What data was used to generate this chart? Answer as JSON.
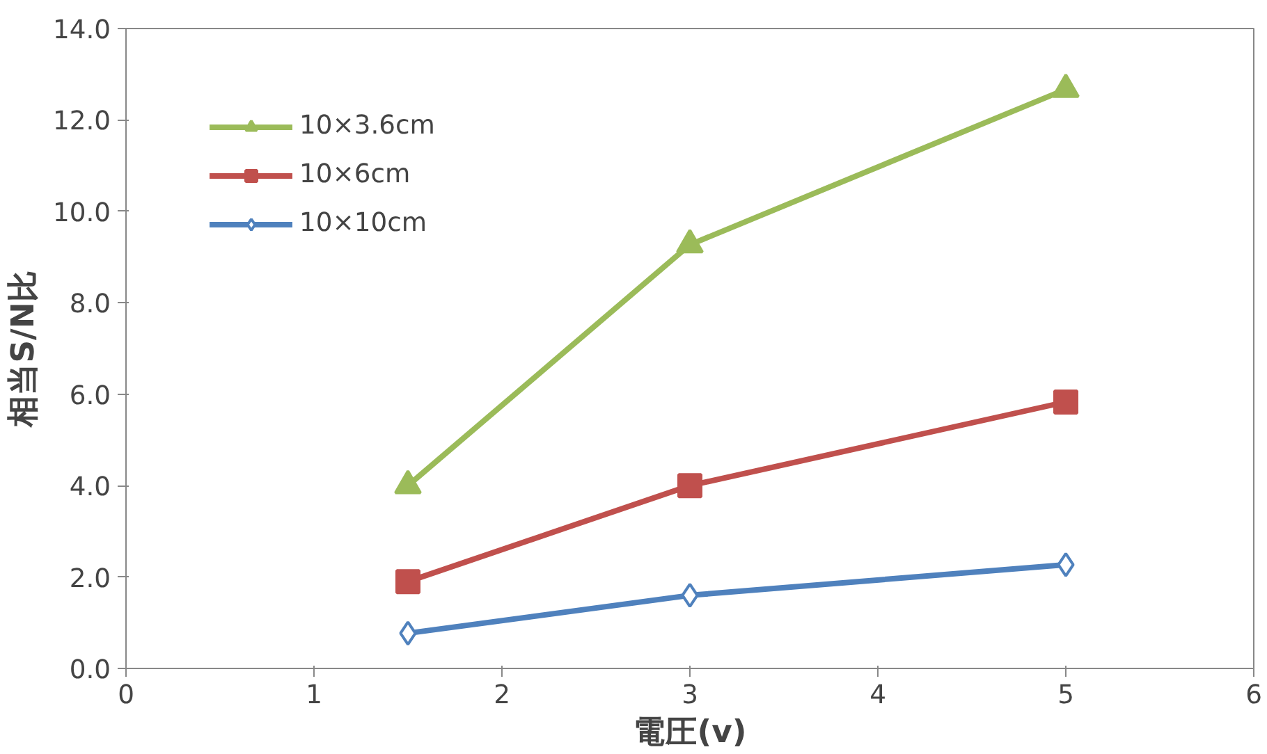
{
  "chart_data": {
    "type": "line",
    "xlabel": "電圧(v)",
    "ylabel": "相当S/N比",
    "x": [
      1.5,
      3,
      5
    ],
    "series": [
      {
        "name": "10×3.6cm",
        "color": "#9bbb59",
        "marker": "triangle",
        "values": [
          4.0,
          9.27,
          12.67
        ]
      },
      {
        "name": "10×6cm",
        "color": "#c0504d",
        "marker": "square",
        "values": [
          1.9,
          4.0,
          5.83
        ]
      },
      {
        "name": "10×10cm",
        "color": "#4f81bd",
        "marker": "diamond",
        "values": [
          0.77,
          1.6,
          2.27
        ]
      }
    ],
    "xlim": [
      0,
      6
    ],
    "xticks": [
      0,
      1,
      2,
      3,
      4,
      5,
      6
    ],
    "ylim": [
      0,
      14
    ],
    "yticks": [
      {
        "value": 0,
        "label": "0.0"
      },
      {
        "value": 2,
        "label": "2.0"
      },
      {
        "value": 4,
        "label": "4.0"
      },
      {
        "value": 6,
        "label": "6.0"
      },
      {
        "value": 8,
        "label": "8.0"
      },
      {
        "value": 10,
        "label": "10.0"
      },
      {
        "value": 12,
        "label": "12.0"
      },
      {
        "value": 14,
        "label": "14.0"
      }
    ],
    "grid": false,
    "legend": "top left",
    "line_style": "solid"
  }
}
